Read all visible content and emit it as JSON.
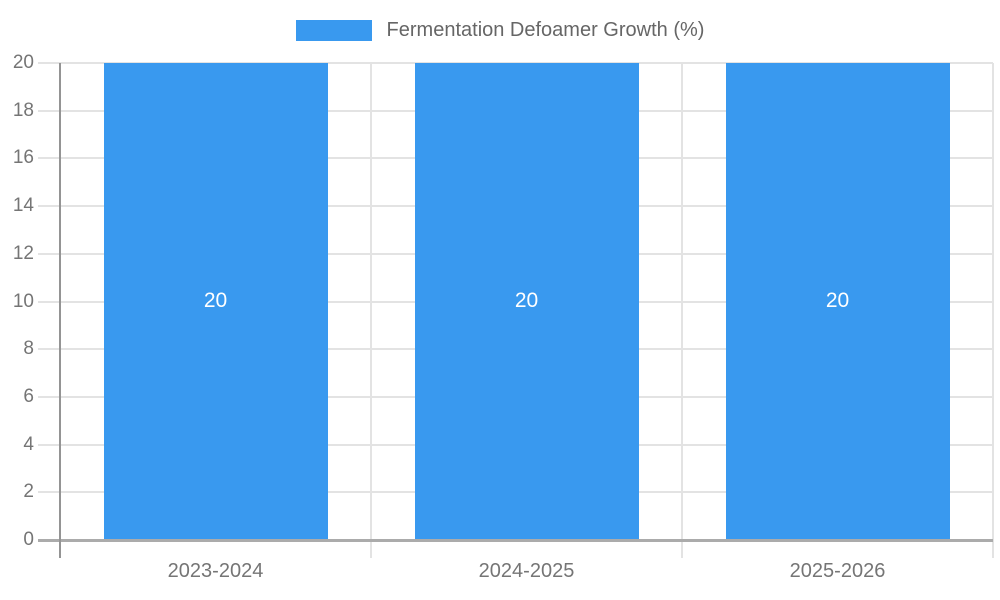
{
  "chart_data": {
    "type": "bar",
    "title": "",
    "xlabel": "",
    "ylabel": "",
    "legend": {
      "label": "Fermentation Defoamer Growth (%)",
      "position": "top"
    },
    "categories": [
      "2023-2024",
      "2024-2025",
      "2025-2026"
    ],
    "series": [
      {
        "name": "Fermentation Defoamer Growth (%)",
        "values": [
          20,
          20,
          20
        ]
      }
    ],
    "bar_value_labels": [
      "20",
      "20",
      "20"
    ],
    "ylim": [
      0,
      20
    ],
    "yticks": [
      0,
      2,
      4,
      6,
      8,
      10,
      12,
      14,
      16,
      18,
      20
    ],
    "grid": true,
    "legend_position": "top"
  },
  "colors": {
    "bar": "#3999EF",
    "grid": "#e3e3e3",
    "y_axis_line": "#949494",
    "x_baseline": "#ababab",
    "tick_label": "#757575",
    "legend_text": "#666666",
    "bar_value_text": "#ffffff",
    "background": "#ffffff"
  }
}
